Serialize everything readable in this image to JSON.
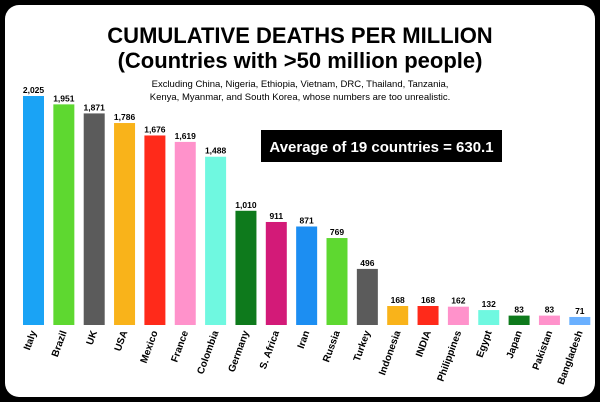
{
  "chart_data": {
    "type": "bar",
    "title": "CUMULATIVE DEATHS PER MILLION",
    "subtitle": "(Countries with >50 million people)",
    "note_line1": "Excluding China, Nigeria, Ethiopia, Vietnam, DRC, Thailand, Tanzania,",
    "note_line2": "Kenya, Myanmar, and South Korea, whose numbers are too unrealistic.",
    "annotation": "Average of 19 countries = 630.1",
    "xlabel": "",
    "ylabel": "",
    "ylim": [
      0,
      2025
    ],
    "grid": false,
    "categories": [
      "Italy",
      "Brazil",
      "UK",
      "USA",
      "Mexico",
      "France",
      "Colombia",
      "Germany",
      "S. Africa",
      "Iran",
      "Russia",
      "Turkey",
      "Indonesia",
      "INDIA",
      "Philippines",
      "Egypt",
      "Japan",
      "Pakistan",
      "Bangladesh"
    ],
    "values": [
      2025,
      1951,
      1871,
      1786,
      1676,
      1619,
      1488,
      1010,
      911,
      871,
      769,
      496,
      168,
      168,
      162,
      132,
      83,
      83,
      71
    ],
    "value_labels": [
      "2,025",
      "1,951",
      "1,871",
      "1,786",
      "1,676",
      "1,619",
      "1,488",
      "1,010",
      "911",
      "871",
      "769",
      "496",
      "168",
      "168",
      "162",
      "132",
      "83",
      "83",
      "71"
    ],
    "colors": [
      "#1aa3f5",
      "#5ed830",
      "#5b5b5b",
      "#f9b31a",
      "#ff2a1a",
      "#ff92cb",
      "#6ff8e0",
      "#0e7a1c",
      "#d31a78",
      "#1c8ef2",
      "#5ed830",
      "#5b5b5b",
      "#f9b31a",
      "#ff2a1a",
      "#ff92cb",
      "#6ff8e0",
      "#0e7a1c",
      "#ff92cb",
      "#6ab0ff"
    ]
  }
}
